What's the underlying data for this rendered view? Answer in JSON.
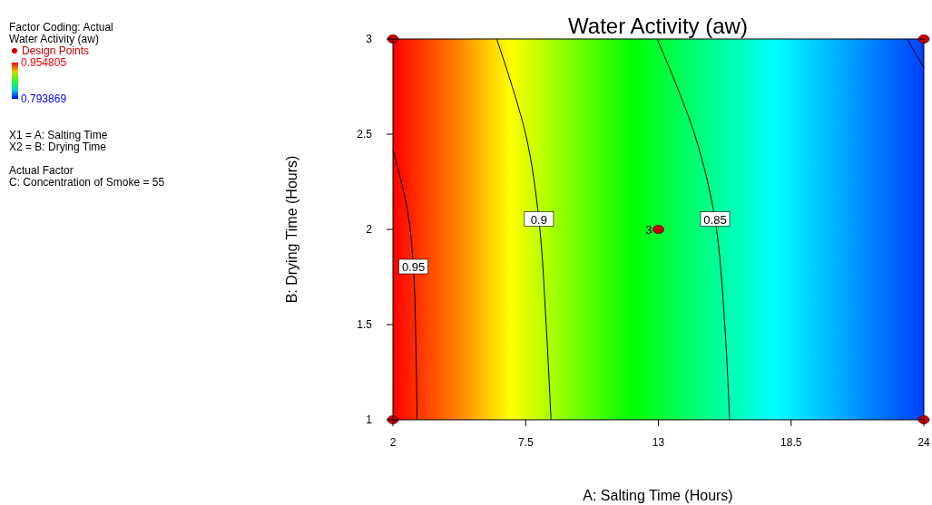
{
  "chart_data": {
    "type": "line",
    "title": "Water Activity (aw)",
    "xlabel": "A: Salting Time (Hours)",
    "ylabel": "B: Drying Time (Hours)",
    "clabel": "Water Activity (aw)",
    "clim": [
      0.793869,
      0.954805
    ],
    "cticks": [
      0.793869,
      0.954805
    ],
    "xlim": [
      2,
      24
    ],
    "ylim": [
      1,
      3
    ],
    "xticks": [
      2,
      7.5,
      13,
      18.5,
      24
    ],
    "yticks": [
      1,
      1.5,
      2,
      2.5,
      3
    ],
    "grid": false,
    "legend": "left",
    "annotations": [
      "Factor Coding: Actual",
      "X1 = A: Salting Time",
      "X2 = B: Drying Time",
      "Actual Factor",
      "C: Concentration of Smoke = 55",
      {
        "text": "3",
        "x": 13,
        "y": 2
      }
    ],
    "series": [
      {
        "name": "0.95",
        "color": "#000000",
        "x": [
          3.0,
          2.95,
          2.85,
          2.6,
          2.0
        ],
        "values": [
          1,
          1.4,
          1.8,
          2.1,
          2.42
        ]
      },
      {
        "name": "0.9",
        "color": "#000000",
        "x": [
          8.55,
          8.35,
          8.05,
          7.5,
          6.3
        ],
        "values": [
          1,
          1.5,
          2.05,
          2.5,
          3
        ]
      },
      {
        "name": "0.85",
        "color": "#000000",
        "x": [
          15.95,
          15.75,
          15.35,
          14.5,
          12.95
        ],
        "values": [
          1,
          1.5,
          2.05,
          2.5,
          3
        ]
      },
      {
        "color": "#000000",
        "x": [
          23.3,
          24
        ],
        "values": [
          3,
          2.85
        ]
      },
      {
        "type": "scatter",
        "name": "Design Points",
        "color": "#cc0000",
        "marker": "circle",
        "x": [
          2,
          2,
          24,
          24,
          13
        ],
        "values": [
          1,
          3,
          1,
          3,
          2
        ]
      }
    ]
  }
}
